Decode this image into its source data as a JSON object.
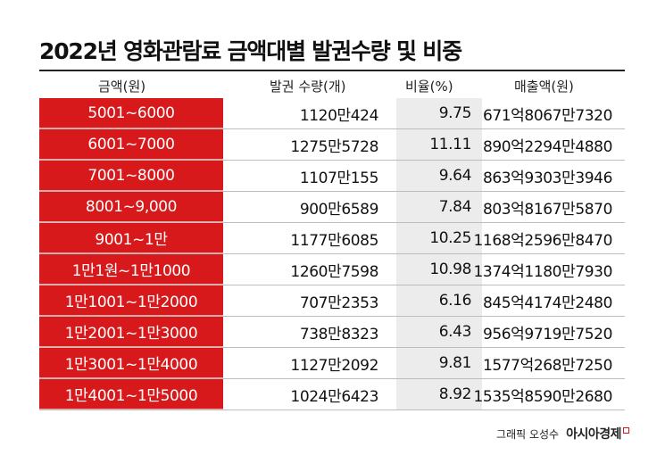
{
  "title": "2022년 영화관람료 금액대별 발권수량 및 비중",
  "headers": {
    "range": "금액(원)",
    "count": "발권 수량(개)",
    "ratio": "비율(%)",
    "sales": "매출액(원)"
  },
  "rows": [
    {
      "range": "5001~6000",
      "count": "1120만424",
      "ratio": "9.75",
      "sales": "671억8067만7320"
    },
    {
      "range": "6001~7000",
      "count": "1275만5728",
      "ratio": "11.11",
      "sales": "890억2294만4880"
    },
    {
      "range": "7001~8000",
      "count": "1107만155",
      "ratio": "9.64",
      "sales": "863억9303만3946"
    },
    {
      "range": "8001~9,000",
      "count": "900만6589",
      "ratio": "7.84",
      "sales": "803억8167만5870"
    },
    {
      "range": "9001~1만",
      "count": "1177만6085",
      "ratio": "10.25",
      "sales": "1168억2596만8470"
    },
    {
      "range": "1만1원~1만1000",
      "count": "1260만7598",
      "ratio": "10.98",
      "sales": "1374억1180만7930"
    },
    {
      "range": "1만1001~1만2000",
      "count": "707만2353",
      "ratio": "6.16",
      "sales": "845억4174만2480"
    },
    {
      "range": "1만2001~1만3000",
      "count": "738만8323",
      "ratio": "6.43",
      "sales": "956억9719만7520"
    },
    {
      "range": "1만3001~1만4000",
      "count": "1127만2092",
      "ratio": "9.81",
      "sales": "1577억268만7250"
    },
    {
      "range": "1만4001~1만5000",
      "count": "1024만6423",
      "ratio": "8.92",
      "sales": "1535억8590만2680"
    }
  ],
  "credit": {
    "graphic": "그래픽 오성수",
    "brand": "아시아경제"
  },
  "colors": {
    "accent": "#d7191c",
    "ratio_column_bg": "#ececec"
  }
}
